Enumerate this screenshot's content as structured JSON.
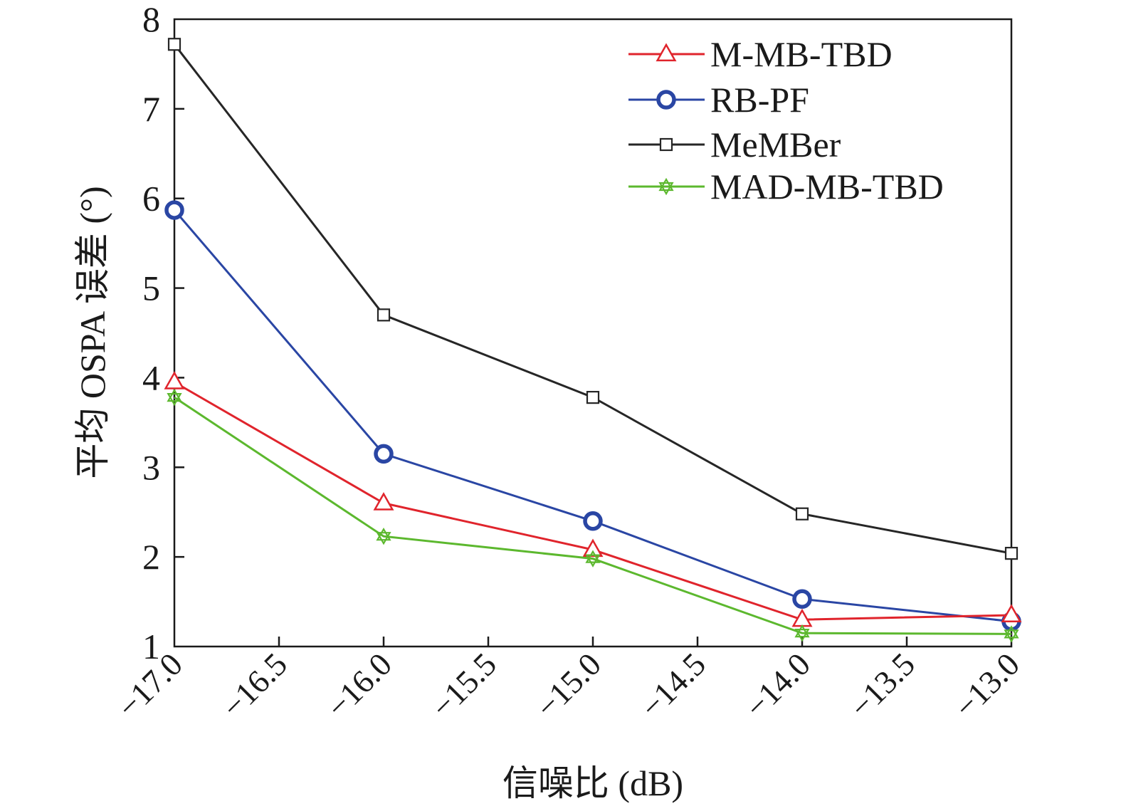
{
  "chart_data": {
    "type": "line",
    "title": "",
    "xlabel": "信噪比 (dB)",
    "ylabel": "平均 OSPA 误差 (°)",
    "xlim": [
      -17.0,
      -13.0
    ],
    "ylim": [
      1,
      8
    ],
    "x_ticks": [
      -17.0,
      -16.5,
      -16.0,
      -15.5,
      -15.0,
      -14.5,
      -14.0,
      -13.5,
      -13.0
    ],
    "x_tick_labels": [
      "−17.0",
      "−16.5",
      "−16.0",
      "−15.5",
      "−15.0",
      "−14.5",
      "−14.0",
      "−13.5",
      "−13.0"
    ],
    "y_ticks": [
      1,
      2,
      3,
      4,
      5,
      6,
      7,
      8
    ],
    "y_tick_labels": [
      "1",
      "2",
      "3",
      "4",
      "5",
      "6",
      "7",
      "8"
    ],
    "grid": false,
    "legend_position": "top-right",
    "x": [
      -17.0,
      -16.0,
      -15.0,
      -14.0,
      -13.0
    ],
    "series": [
      {
        "name": "M-MB-TBD",
        "values": [
          3.95,
          2.6,
          2.08,
          1.3,
          1.35
        ],
        "color": "#e0242c",
        "marker": "triangle"
      },
      {
        "name": "RB-PF",
        "values": [
          5.87,
          3.15,
          2.4,
          1.53,
          1.28
        ],
        "color": "#2a46a4",
        "marker": "circle"
      },
      {
        "name": "MeMBer",
        "values": [
          7.72,
          4.7,
          3.78,
          2.48,
          2.04
        ],
        "color": "#262626",
        "marker": "square"
      },
      {
        "name": "MAD-MB-TBD",
        "values": [
          3.78,
          2.23,
          1.98,
          1.15,
          1.14
        ],
        "color": "#5cb82e",
        "marker": "star"
      }
    ]
  }
}
